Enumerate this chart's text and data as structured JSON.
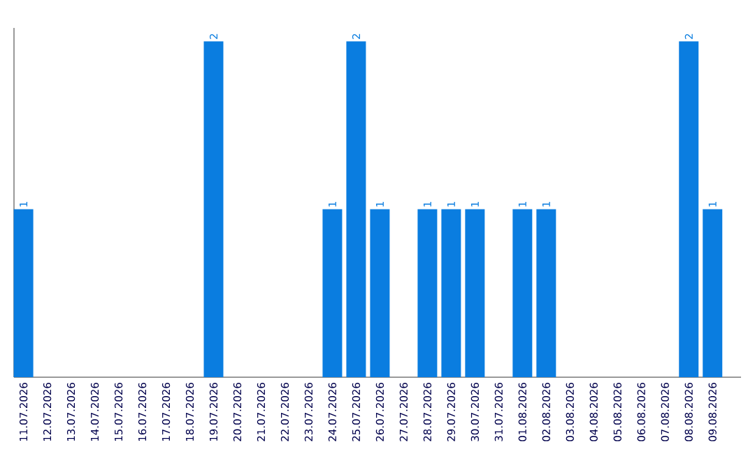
{
  "chart_data": {
    "type": "bar",
    "color": "#0a7de0",
    "categories": [
      "11.07.2026",
      "12.07.2026",
      "13.07.2026",
      "14.07.2026",
      "15.07.2026",
      "16.07.2026",
      "17.07.2026",
      "18.07.2026",
      "19.07.2026",
      "20.07.2026",
      "21.07.2026",
      "22.07.2026",
      "23.07.2026",
      "24.07.2026",
      "25.07.2026",
      "26.07.2026",
      "27.07.2026",
      "28.07.2026",
      "29.07.2026",
      "30.07.2026",
      "31.07.2026",
      "01.08.2026",
      "02.08.2026",
      "03.08.2026",
      "04.08.2026",
      "05.08.2026",
      "06.08.2026",
      "07.08.2026",
      "08.08.2026",
      "09.08.2026"
    ],
    "values": [
      1,
      0,
      0,
      0,
      0,
      0,
      0,
      0,
      2,
      0,
      0,
      0,
      0,
      1,
      2,
      1,
      0,
      1,
      1,
      1,
      0,
      1,
      1,
      0,
      0,
      0,
      0,
      0,
      2,
      1
    ],
    "value_labels": [
      "1",
      null,
      null,
      null,
      null,
      null,
      null,
      null,
      "2",
      null,
      null,
      null,
      null,
      "1",
      "2",
      "1",
      null,
      "1",
      "1",
      "1",
      null,
      "1",
      "1",
      null,
      null,
      null,
      null,
      null,
      "2",
      "1"
    ]
  }
}
